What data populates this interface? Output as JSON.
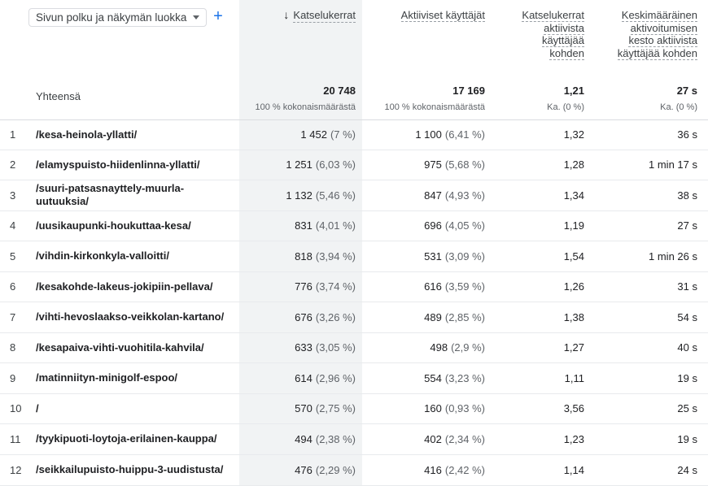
{
  "dimension_selector": {
    "label": "Sivun polku ja näkymän luokka",
    "add_label": "+"
  },
  "columns": [
    {
      "label": "Katselukerrat",
      "sorted": true
    },
    {
      "label": "Aktiiviset käyttäjät"
    },
    {
      "label_lines": [
        "Katselukerrat",
        "aktiivista",
        "käyttäjää",
        "kohden"
      ]
    },
    {
      "label_lines": [
        "Keskimääräinen",
        "aktivoitumisen",
        "kesto aktiivista",
        "käyttäjää kohden"
      ]
    }
  ],
  "totals": {
    "label": "Yhteensä",
    "values": [
      "20 748",
      "17 169",
      "1,21",
      "27 s"
    ],
    "subs": [
      "100 % kokonaismäärästä",
      "100 % kokonaismäärästä",
      "Ka. (0 %)",
      "Ka. (0 %)"
    ]
  },
  "rows": [
    {
      "n": "1",
      "path": "/kesa-heinola-yllatti/",
      "views": "1 452",
      "views_pct": "(7 %)",
      "users": "1 100",
      "users_pct": "(6,41 %)",
      "vpu": "1,32",
      "dur": "36 s"
    },
    {
      "n": "2",
      "path": "/elamyspuisto-hiidenlinna-yllatti/",
      "views": "1 251",
      "views_pct": "(6,03 %)",
      "users": "975",
      "users_pct": "(5,68 %)",
      "vpu": "1,28",
      "dur": "1 min 17 s"
    },
    {
      "n": "3",
      "path": "/suuri-patsasnayttely-muurla-uutuuksia/",
      "views": "1 132",
      "views_pct": "(5,46 %)",
      "users": "847",
      "users_pct": "(4,93 %)",
      "vpu": "1,34",
      "dur": "38 s"
    },
    {
      "n": "4",
      "path": "/uusikaupunki-houkuttaa-kesa/",
      "views": "831",
      "views_pct": "(4,01 %)",
      "users": "696",
      "users_pct": "(4,05 %)",
      "vpu": "1,19",
      "dur": "27 s"
    },
    {
      "n": "5",
      "path": "/vihdin-kirkonkyla-valloitti/",
      "views": "818",
      "views_pct": "(3,94 %)",
      "users": "531",
      "users_pct": "(3,09 %)",
      "vpu": "1,54",
      "dur": "1 min 26 s"
    },
    {
      "n": "6",
      "path": "/kesakohde-lakeus-jokipiin-pellava/",
      "views": "776",
      "views_pct": "(3,74 %)",
      "users": "616",
      "users_pct": "(3,59 %)",
      "vpu": "1,26",
      "dur": "31 s"
    },
    {
      "n": "7",
      "path": "/vihti-hevoslaakso-veikkolan-kartano/",
      "views": "676",
      "views_pct": "(3,26 %)",
      "users": "489",
      "users_pct": "(2,85 %)",
      "vpu": "1,38",
      "dur": "54 s"
    },
    {
      "n": "8",
      "path": "/kesapaiva-vihti-vuohitila-kahvila/",
      "views": "633",
      "views_pct": "(3,05 %)",
      "users": "498",
      "users_pct": "(2,9 %)",
      "vpu": "1,27",
      "dur": "40 s"
    },
    {
      "n": "9",
      "path": "/matinniityn-minigolf-espoo/",
      "views": "614",
      "views_pct": "(2,96 %)",
      "users": "554",
      "users_pct": "(3,23 %)",
      "vpu": "1,11",
      "dur": "19 s"
    },
    {
      "n": "10",
      "path": "/",
      "views": "570",
      "views_pct": "(2,75 %)",
      "users": "160",
      "users_pct": "(0,93 %)",
      "vpu": "3,56",
      "dur": "25 s"
    },
    {
      "n": "11",
      "path": "/tyykipuoti-loytoja-erilainen-kauppa/",
      "views": "494",
      "views_pct": "(2,38 %)",
      "users": "402",
      "users_pct": "(2,34 %)",
      "vpu": "1,23",
      "dur": "19 s"
    },
    {
      "n": "12",
      "path": "/seikkailupuisto-huippu-3-uudistusta/",
      "views": "476",
      "views_pct": "(2,29 %)",
      "users": "416",
      "users_pct": "(2,42 %)",
      "vpu": "1,14",
      "dur": "24 s"
    }
  ]
}
